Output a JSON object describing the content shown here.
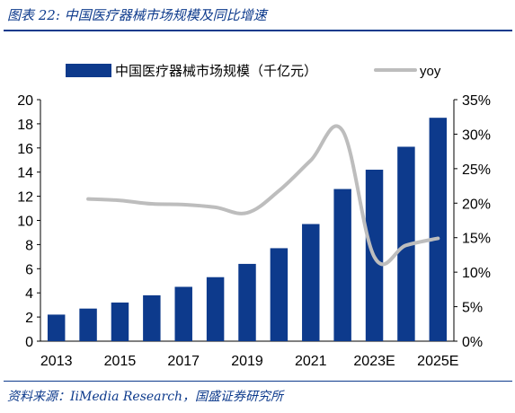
{
  "figure": {
    "title": "图表 22:  中国医疗器械市场规模及同比增速",
    "source": "资料来源：IiMedia Research，国盛证券研究所"
  },
  "colors": {
    "bar": "#0d3a8c",
    "line": "#bdbdbd",
    "text": "#000000"
  },
  "chart_data": {
    "type": "bar",
    "categories": [
      "2013",
      "2014",
      "2015",
      "2016",
      "2017",
      "2018",
      "2019",
      "2020",
      "2021",
      "2022",
      "2023E",
      "2024E",
      "2025E"
    ],
    "x_tick_labels": [
      "2013",
      "2015",
      "2017",
      "2019",
      "2021",
      "2023E",
      "2025E"
    ],
    "series": [
      {
        "name": "中国医疗器械市场规模（千亿元）",
        "type": "bar",
        "axis": "left",
        "values": [
          2.2,
          2.7,
          3.2,
          3.8,
          4.5,
          5.3,
          6.4,
          7.7,
          9.7,
          12.6,
          14.2,
          16.1,
          18.5
        ]
      },
      {
        "name": "yoy",
        "type": "line",
        "axis": "right",
        "unit": "%",
        "values": [
          null,
          20.6,
          20.4,
          19.9,
          19.8,
          19.4,
          18.6,
          21.8,
          26.2,
          30.5,
          12.2,
          13.9,
          14.9
        ]
      }
    ],
    "left_axis": {
      "ylim": [
        0,
        20
      ],
      "ticks": [
        "0",
        "2",
        "4",
        "6",
        "8",
        "10",
        "12",
        "14",
        "16",
        "18",
        "20"
      ]
    },
    "right_axis": {
      "ylim": [
        0,
        35
      ],
      "ticks": [
        "0%",
        "5%",
        "10%",
        "15%",
        "20%",
        "25%",
        "30%",
        "35%"
      ]
    },
    "legend_position": "top"
  }
}
